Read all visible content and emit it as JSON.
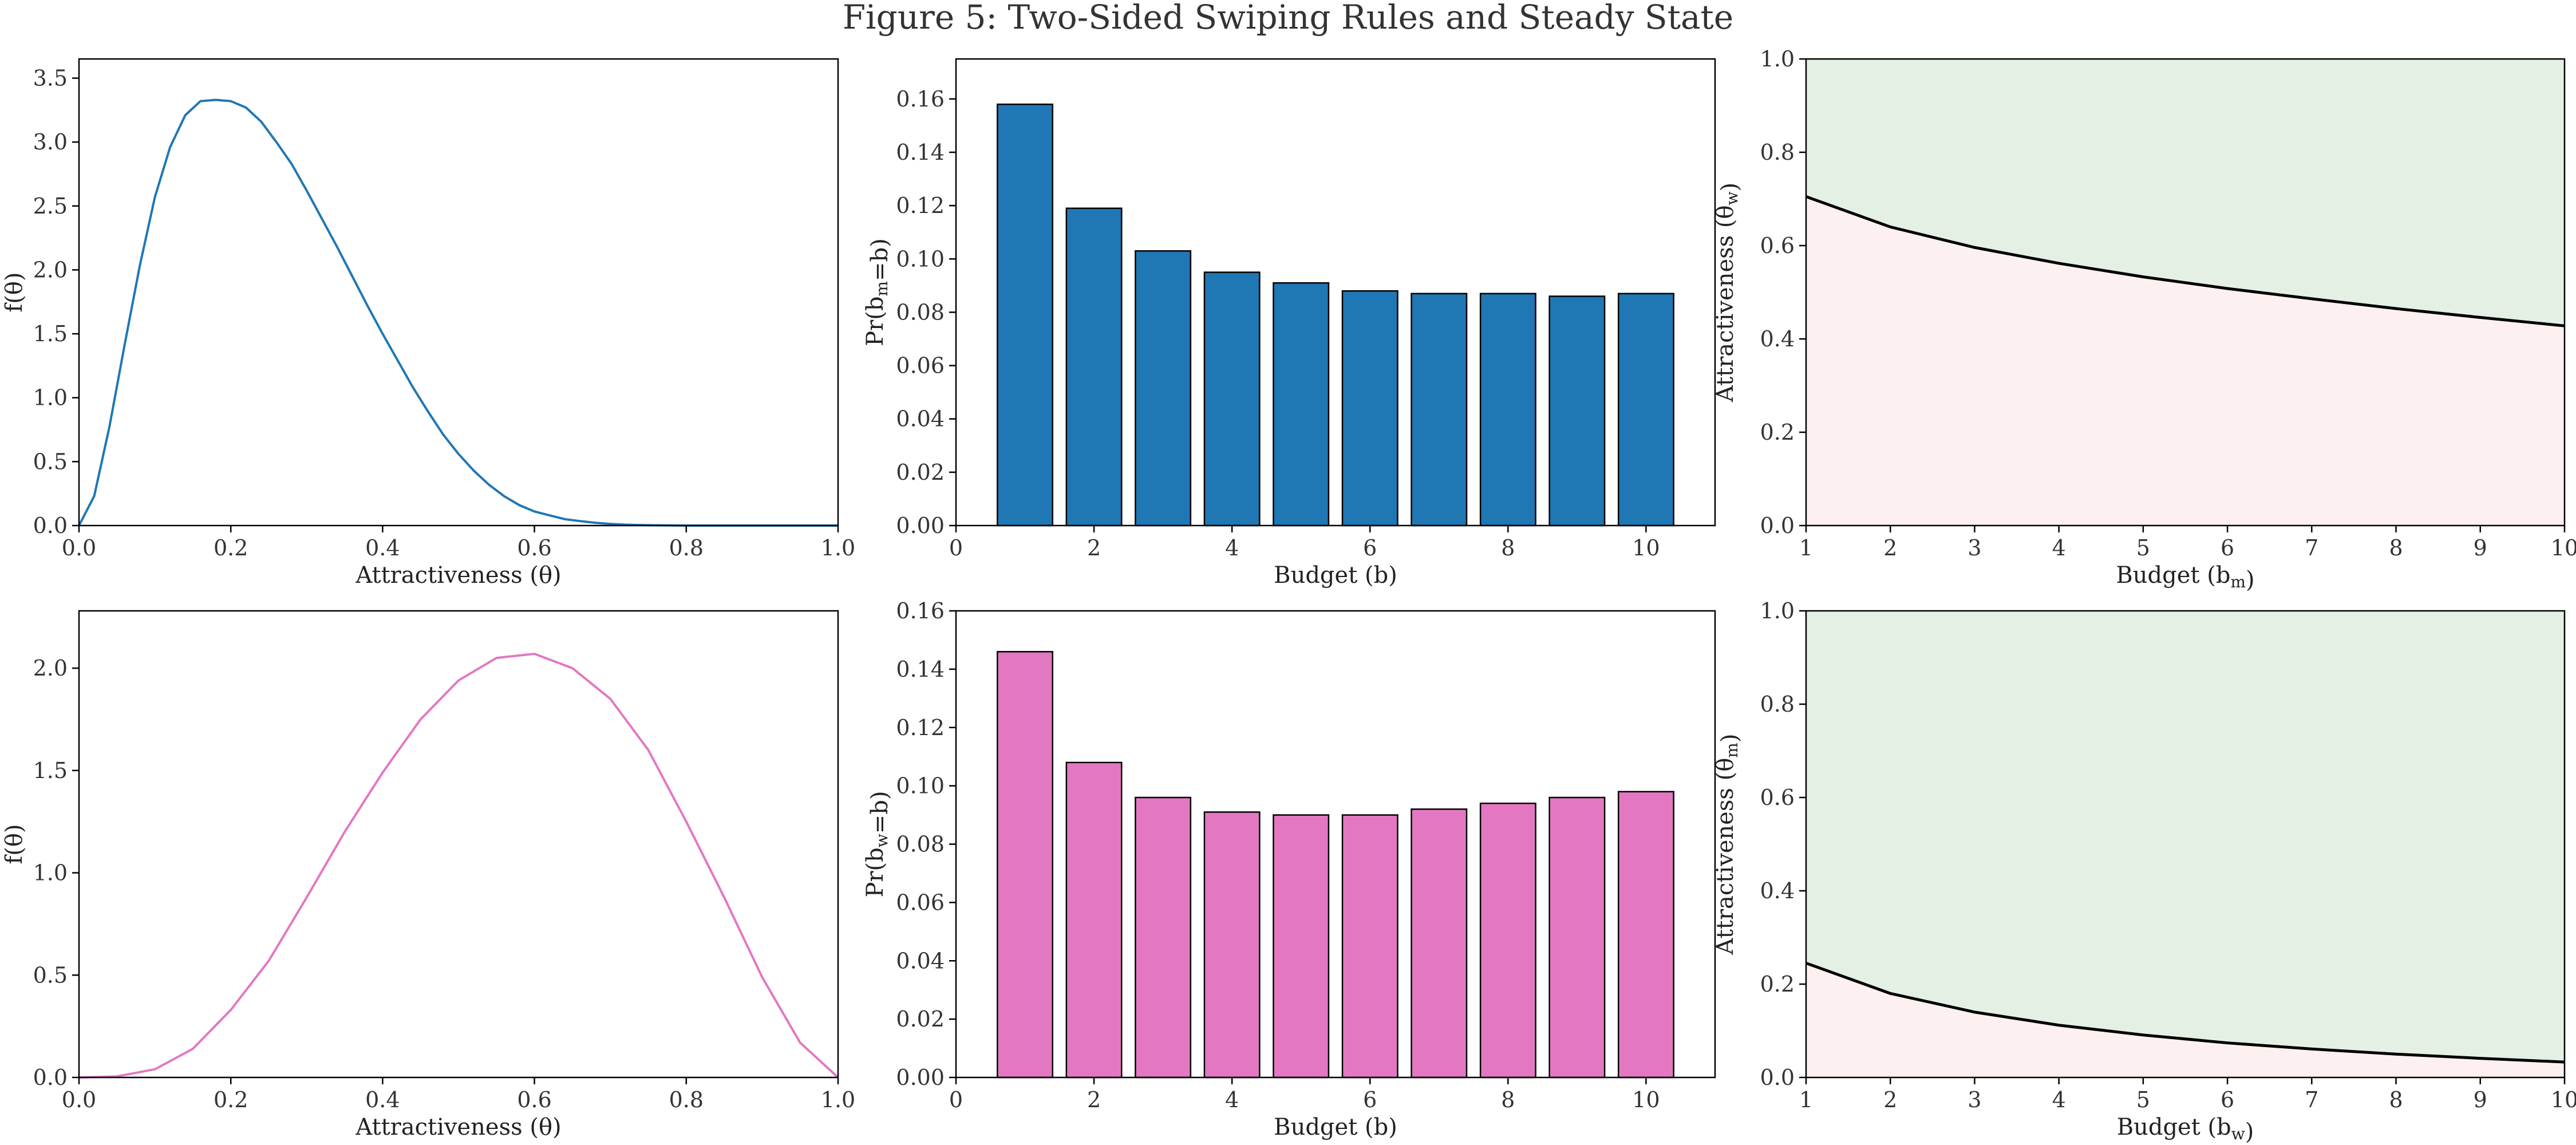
{
  "figure_title": "Figure 5: Two-Sided Swiping Rules and Steady State",
  "colors": {
    "men": "#1f77b4",
    "women": "#e377c2",
    "accept_region": "#e3f0e3",
    "reject_region": "#fdf0f0",
    "threshold_line": "#000000"
  },
  "chart_data": [
    {
      "type": "line",
      "xlabel": "Attractiveness (θ)",
      "ylabel": "f(θ)",
      "xlim": [
        0,
        1
      ],
      "ylim": [
        0,
        3.65
      ],
      "xticks": [
        "0.0",
        "0.2",
        "0.4",
        "0.6",
        "0.8",
        "1.0"
      ],
      "yticks": [
        "0.0",
        "0.5",
        "1.0",
        "1.5",
        "2.0",
        "2.5",
        "3.0",
        "3.5"
      ],
      "series": [
        {
          "color": "#1f77b4",
          "x": [
            0,
            0.02,
            0.04,
            0.06,
            0.08,
            0.1,
            0.12,
            0.14,
            0.16,
            0.18,
            0.2,
            0.22,
            0.24,
            0.26,
            0.28,
            0.3,
            0.32,
            0.34,
            0.36,
            0.38,
            0.4,
            0.42,
            0.44,
            0.46,
            0.48,
            0.5,
            0.52,
            0.54,
            0.56,
            0.58,
            0.6,
            0.62,
            0.64,
            0.66,
            0.68,
            0.7,
            0.72,
            0.74,
            0.76,
            0.78,
            0.8,
            0.85,
            0.9,
            0.95,
            1.0
          ],
          "y": [
            0,
            0.23,
            0.77,
            1.41,
            2.03,
            2.57,
            2.96,
            3.21,
            3.32,
            3.33,
            3.32,
            3.27,
            3.16,
            3.0,
            2.83,
            2.62,
            2.4,
            2.18,
            1.95,
            1.72,
            1.5,
            1.29,
            1.08,
            0.89,
            0.71,
            0.56,
            0.43,
            0.32,
            0.23,
            0.16,
            0.11,
            0.08,
            0.05,
            0.035,
            0.022,
            0.013,
            0.007,
            0.004,
            0.002,
            0.001,
            0,
            0,
            0,
            0,
            0
          ]
        }
      ]
    },
    {
      "type": "bar",
      "xlabel": "Budget (b)",
      "ylabel": "Pr(b_m=b)",
      "xlim": [
        0,
        11
      ],
      "ylim": [
        0,
        0.175
      ],
      "xticks": [
        "0",
        "2",
        "4",
        "6",
        "8",
        "10"
      ],
      "yticks": [
        "0.00",
        "0.02",
        "0.04",
        "0.06",
        "0.08",
        "0.10",
        "0.12",
        "0.14",
        "0.16"
      ],
      "color": "#1f77b4",
      "categories": [
        1,
        2,
        3,
        4,
        5,
        6,
        7,
        8,
        9,
        10
      ],
      "values": [
        0.158,
        0.119,
        0.103,
        0.095,
        0.091,
        0.088,
        0.087,
        0.087,
        0.086,
        0.087
      ]
    },
    {
      "type": "area",
      "xlabel": "Budget (b_m)",
      "ylabel": "Attractiveness (θ_w)",
      "xlim": [
        1,
        10
      ],
      "ylim": [
        0,
        1
      ],
      "xticks": [
        "1",
        "2",
        "3",
        "4",
        "5",
        "6",
        "7",
        "8",
        "9",
        "10"
      ],
      "yticks": [
        "0.0",
        "0.2",
        "0.4",
        "0.6",
        "0.8",
        "1.0"
      ],
      "x": [
        1,
        2,
        3,
        4,
        5,
        6,
        7,
        8,
        9,
        10
      ],
      "threshold": [
        0.705,
        0.64,
        0.596,
        0.562,
        0.533,
        0.508,
        0.486,
        0.465,
        0.446,
        0.428
      ]
    },
    {
      "type": "line",
      "xlabel": "Attractiveness (θ)",
      "ylabel": "f(θ)",
      "xlim": [
        0,
        1
      ],
      "ylim": [
        0,
        2.28
      ],
      "xticks": [
        "0.0",
        "0.2",
        "0.4",
        "0.6",
        "0.8",
        "1.0"
      ],
      "yticks": [
        "0.0",
        "0.5",
        "1.0",
        "1.5",
        "2.0"
      ],
      "series": [
        {
          "color": "#e377c2",
          "x": [
            0,
            0.05,
            0.1,
            0.15,
            0.2,
            0.25,
            0.3,
            0.35,
            0.4,
            0.45,
            0.5,
            0.55,
            0.6,
            0.65,
            0.7,
            0.75,
            0.8,
            0.85,
            0.9,
            0.95,
            1.0
          ],
          "y": [
            0,
            0.005,
            0.04,
            0.14,
            0.33,
            0.57,
            0.88,
            1.2,
            1.49,
            1.75,
            1.94,
            2.05,
            2.07,
            2.0,
            1.85,
            1.6,
            1.25,
            0.88,
            0.49,
            0.17,
            0
          ]
        }
      ]
    },
    {
      "type": "bar",
      "xlabel": "Budget (b)",
      "ylabel": "Pr(b_w=b)",
      "xlim": [
        0,
        11
      ],
      "ylim": [
        0,
        0.16
      ],
      "xticks": [
        "0",
        "2",
        "4",
        "6",
        "8",
        "10"
      ],
      "yticks": [
        "0.00",
        "0.02",
        "0.04",
        "0.06",
        "0.08",
        "0.10",
        "0.12",
        "0.14",
        "0.16"
      ],
      "color": "#e377c2",
      "categories": [
        1,
        2,
        3,
        4,
        5,
        6,
        7,
        8,
        9,
        10
      ],
      "values": [
        0.146,
        0.108,
        0.096,
        0.091,
        0.09,
        0.09,
        0.092,
        0.094,
        0.096,
        0.098
      ]
    },
    {
      "type": "area",
      "xlabel": "Budget (b_w)",
      "ylabel": "Attractiveness (θ_m)",
      "xlim": [
        1,
        10
      ],
      "ylim": [
        0,
        1
      ],
      "xticks": [
        "1",
        "2",
        "3",
        "4",
        "5",
        "6",
        "7",
        "8",
        "9",
        "10"
      ],
      "yticks": [
        "0.0",
        "0.2",
        "0.4",
        "0.6",
        "0.8",
        "1.0"
      ],
      "x": [
        1,
        2,
        3,
        4,
        5,
        6,
        7,
        8,
        9,
        10
      ],
      "threshold": [
        0.245,
        0.18,
        0.14,
        0.112,
        0.091,
        0.074,
        0.061,
        0.05,
        0.041,
        0.033
      ]
    }
  ]
}
